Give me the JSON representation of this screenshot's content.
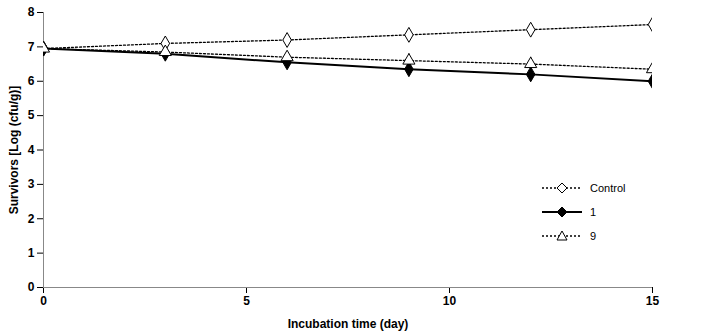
{
  "chart_data": {
    "type": "line",
    "x_label": "Incubation time (day)",
    "y_label": "Survivors [Log (cfu/g)]",
    "x": [
      0,
      3,
      6,
      9,
      12,
      15
    ],
    "xlim": [
      0,
      15
    ],
    "xticks": [
      0,
      5,
      10,
      15
    ],
    "ylim": [
      0,
      8
    ],
    "yticks": [
      0,
      1,
      2,
      3,
      4,
      5,
      6,
      7,
      8
    ],
    "grid": false,
    "legend": "right",
    "series": [
      {
        "name": "Control",
        "color": "#000000",
        "marker": "open-diamond",
        "line_style": "dotted",
        "values": [
          6.95,
          7.1,
          7.2,
          7.35,
          7.5,
          7.65
        ],
        "errors": [
          0.1,
          0.1,
          0.12,
          0.12,
          0.1,
          0.08
        ]
      },
      {
        "name": "1",
        "color": "#000000",
        "marker": "diamond",
        "line_style": "solid",
        "values": [
          6.95,
          6.8,
          6.55,
          6.35,
          6.2,
          6.0
        ],
        "errors": [
          0.1,
          0.1,
          0.1,
          0.15,
          0.15,
          0.1
        ]
      },
      {
        "name": "9",
        "color": "#000000",
        "marker": "open-triangle",
        "line_style": "dotted",
        "values": [
          6.95,
          6.85,
          6.7,
          6.6,
          6.5,
          6.35
        ],
        "errors": [
          0.1,
          0.1,
          0.12,
          0.2,
          0.2,
          0.15
        ]
      }
    ]
  }
}
